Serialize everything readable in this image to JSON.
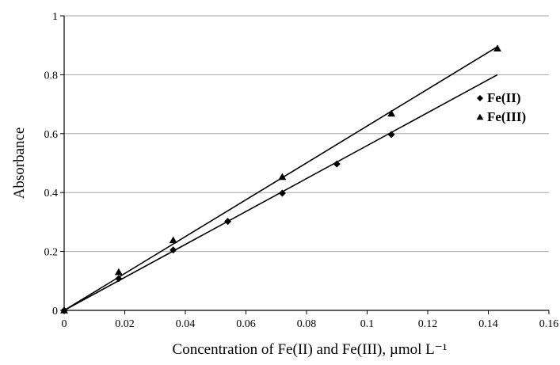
{
  "chart_data": {
    "type": "scatter",
    "xlabel": "Concentration of Fe(II) and Fe(III), µmol L⁻¹",
    "ylabel": "Absorbance",
    "xlim": [
      0,
      0.16
    ],
    "ylim": [
      0,
      1
    ],
    "x_ticks": [
      "0",
      "0.02",
      "0.04",
      "0.06",
      "0.08",
      "0.1",
      "0.12",
      "0.14",
      "0.16"
    ],
    "y_ticks": [
      "0",
      "0.2",
      "0.4",
      "0.6",
      "0.8",
      "1"
    ],
    "grid": "horizontal",
    "legend_position": "right",
    "trendline": "linear",
    "series": [
      {
        "name": "Fe(II)",
        "marker": "diamond",
        "color": "#000000",
        "x": [
          0,
          0.018,
          0.036,
          0.054,
          0.072,
          0.09,
          0.108
        ],
        "y": [
          0,
          0.108,
          0.205,
          0.302,
          0.398,
          0.497,
          0.597
        ],
        "fit": {
          "x": [
            0,
            0.143
          ],
          "y": [
            0,
            0.8
          ]
        }
      },
      {
        "name": "Fe(III)",
        "marker": "triangle",
        "color": "#000000",
        "x": [
          0,
          0.018,
          0.036,
          0.072,
          0.108,
          0.143
        ],
        "y": [
          0,
          0.13,
          0.238,
          0.453,
          0.668,
          0.889
        ],
        "fit": {
          "x": [
            0,
            0.143
          ],
          "y": [
            0,
            0.895
          ]
        }
      }
    ]
  }
}
